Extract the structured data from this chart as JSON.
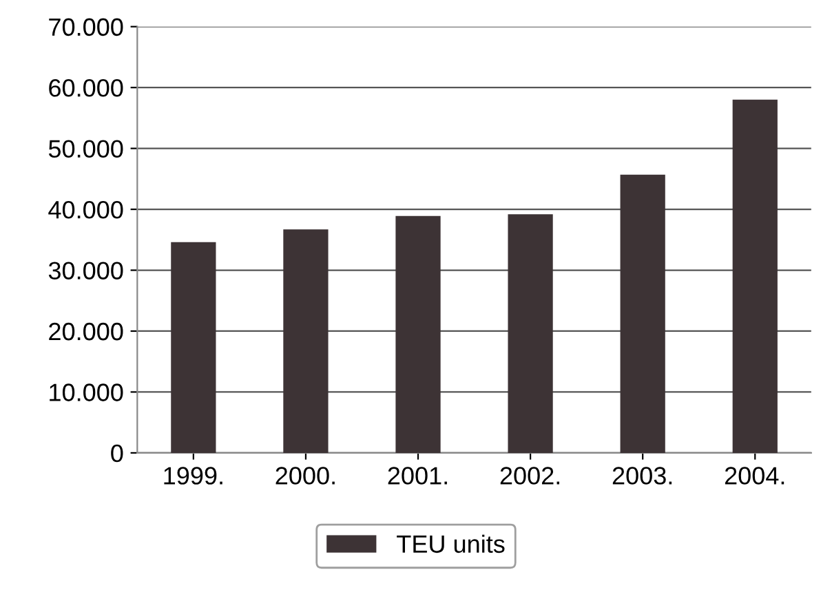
{
  "chart_data": {
    "type": "bar",
    "categories": [
      "1999.",
      "2000.",
      "2001.",
      "2002.",
      "2003.",
      "2004."
    ],
    "series": [
      {
        "name": "TEU units",
        "color": "#3d3335",
        "values": [
          34600,
          36700,
          38900,
          39200,
          45700,
          58000
        ]
      }
    ],
    "ylim": [
      0,
      70000
    ],
    "yticks": [
      {
        "value": 0,
        "label": "0"
      },
      {
        "value": 10000,
        "label": "10.000"
      },
      {
        "value": 20000,
        "label": "20.000"
      },
      {
        "value": 30000,
        "label": "30.000"
      },
      {
        "value": 40000,
        "label": "40.000"
      },
      {
        "value": 50000,
        "label": "50.000"
      },
      {
        "value": 60000,
        "label": "60.000"
      },
      {
        "value": 70000,
        "label": "70.000"
      }
    ],
    "grid": "y",
    "legend": "bottom"
  }
}
